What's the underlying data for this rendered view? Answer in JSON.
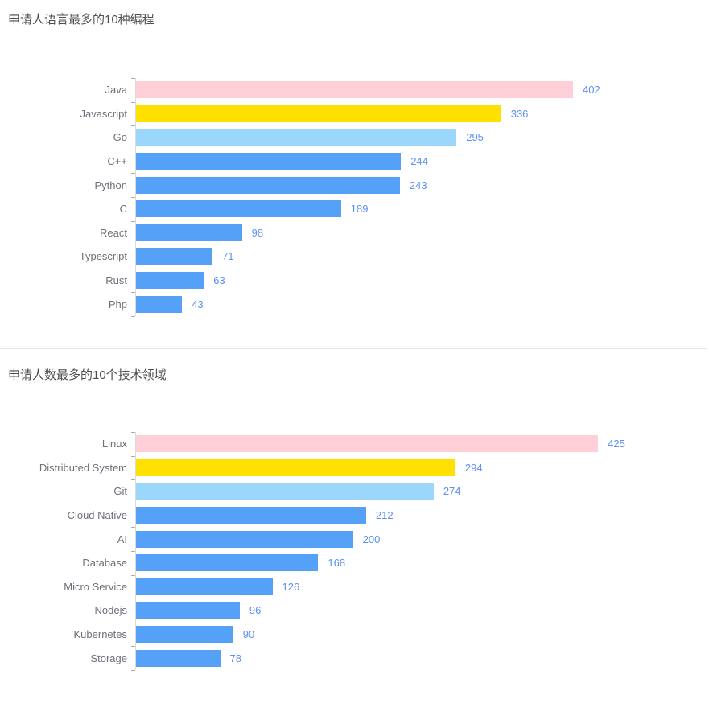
{
  "page": {
    "background": "#ffffff",
    "divider_color": "#e7e7e7"
  },
  "chart_data": [
    {
      "type": "bar",
      "orientation": "horizontal",
      "title": "申请人语言最多的10种编程",
      "categories": [
        "Java",
        "Javascript",
        "Go",
        "C++",
        "Python",
        "C",
        "React",
        "Typescript",
        "Rust",
        "Php"
      ],
      "values": [
        402,
        336,
        295,
        244,
        243,
        189,
        98,
        71,
        63,
        43
      ],
      "bar_colors": [
        "#FFCFD8",
        "#FFE000",
        "#9BD6FB",
        "#55A1F8",
        "#55A1F8",
        "#55A1F8",
        "#55A1F8",
        "#55A1F8",
        "#55A1F8",
        "#55A1F8"
      ],
      "xlabel": "",
      "ylabel": "",
      "xlim": [
        0,
        450
      ],
      "grid": false,
      "legend": "none",
      "value_labels": "shown right of each bar",
      "value_label_color": "#5B8FF9",
      "axis_label_color": "#6e7079",
      "axis_line_color": "#dcdcdc",
      "tick_color": "#adadad"
    },
    {
      "type": "bar",
      "orientation": "horizontal",
      "title": "申请人数最多的10个技术领域",
      "categories": [
        "Linux",
        "Distributed System",
        "Git",
        "Cloud Native",
        "AI",
        "Database",
        "Micro Service",
        "Nodejs",
        "Kubernetes",
        "Storage"
      ],
      "values": [
        425,
        294,
        274,
        212,
        200,
        168,
        126,
        96,
        90,
        78
      ],
      "bar_colors": [
        "#FFCFD8",
        "#FFE000",
        "#9BD6FB",
        "#55A1F8",
        "#55A1F8",
        "#55A1F8",
        "#55A1F8",
        "#55A1F8",
        "#55A1F8",
        "#55A1F8"
      ],
      "xlabel": "",
      "ylabel": "",
      "xlim": [
        0,
        450
      ],
      "grid": false,
      "legend": "none",
      "value_labels": "shown right of each bar",
      "value_label_color": "#5B8FF9",
      "axis_label_color": "#6e7079",
      "axis_line_color": "#dcdcdc",
      "tick_color": "#adadad"
    }
  ]
}
